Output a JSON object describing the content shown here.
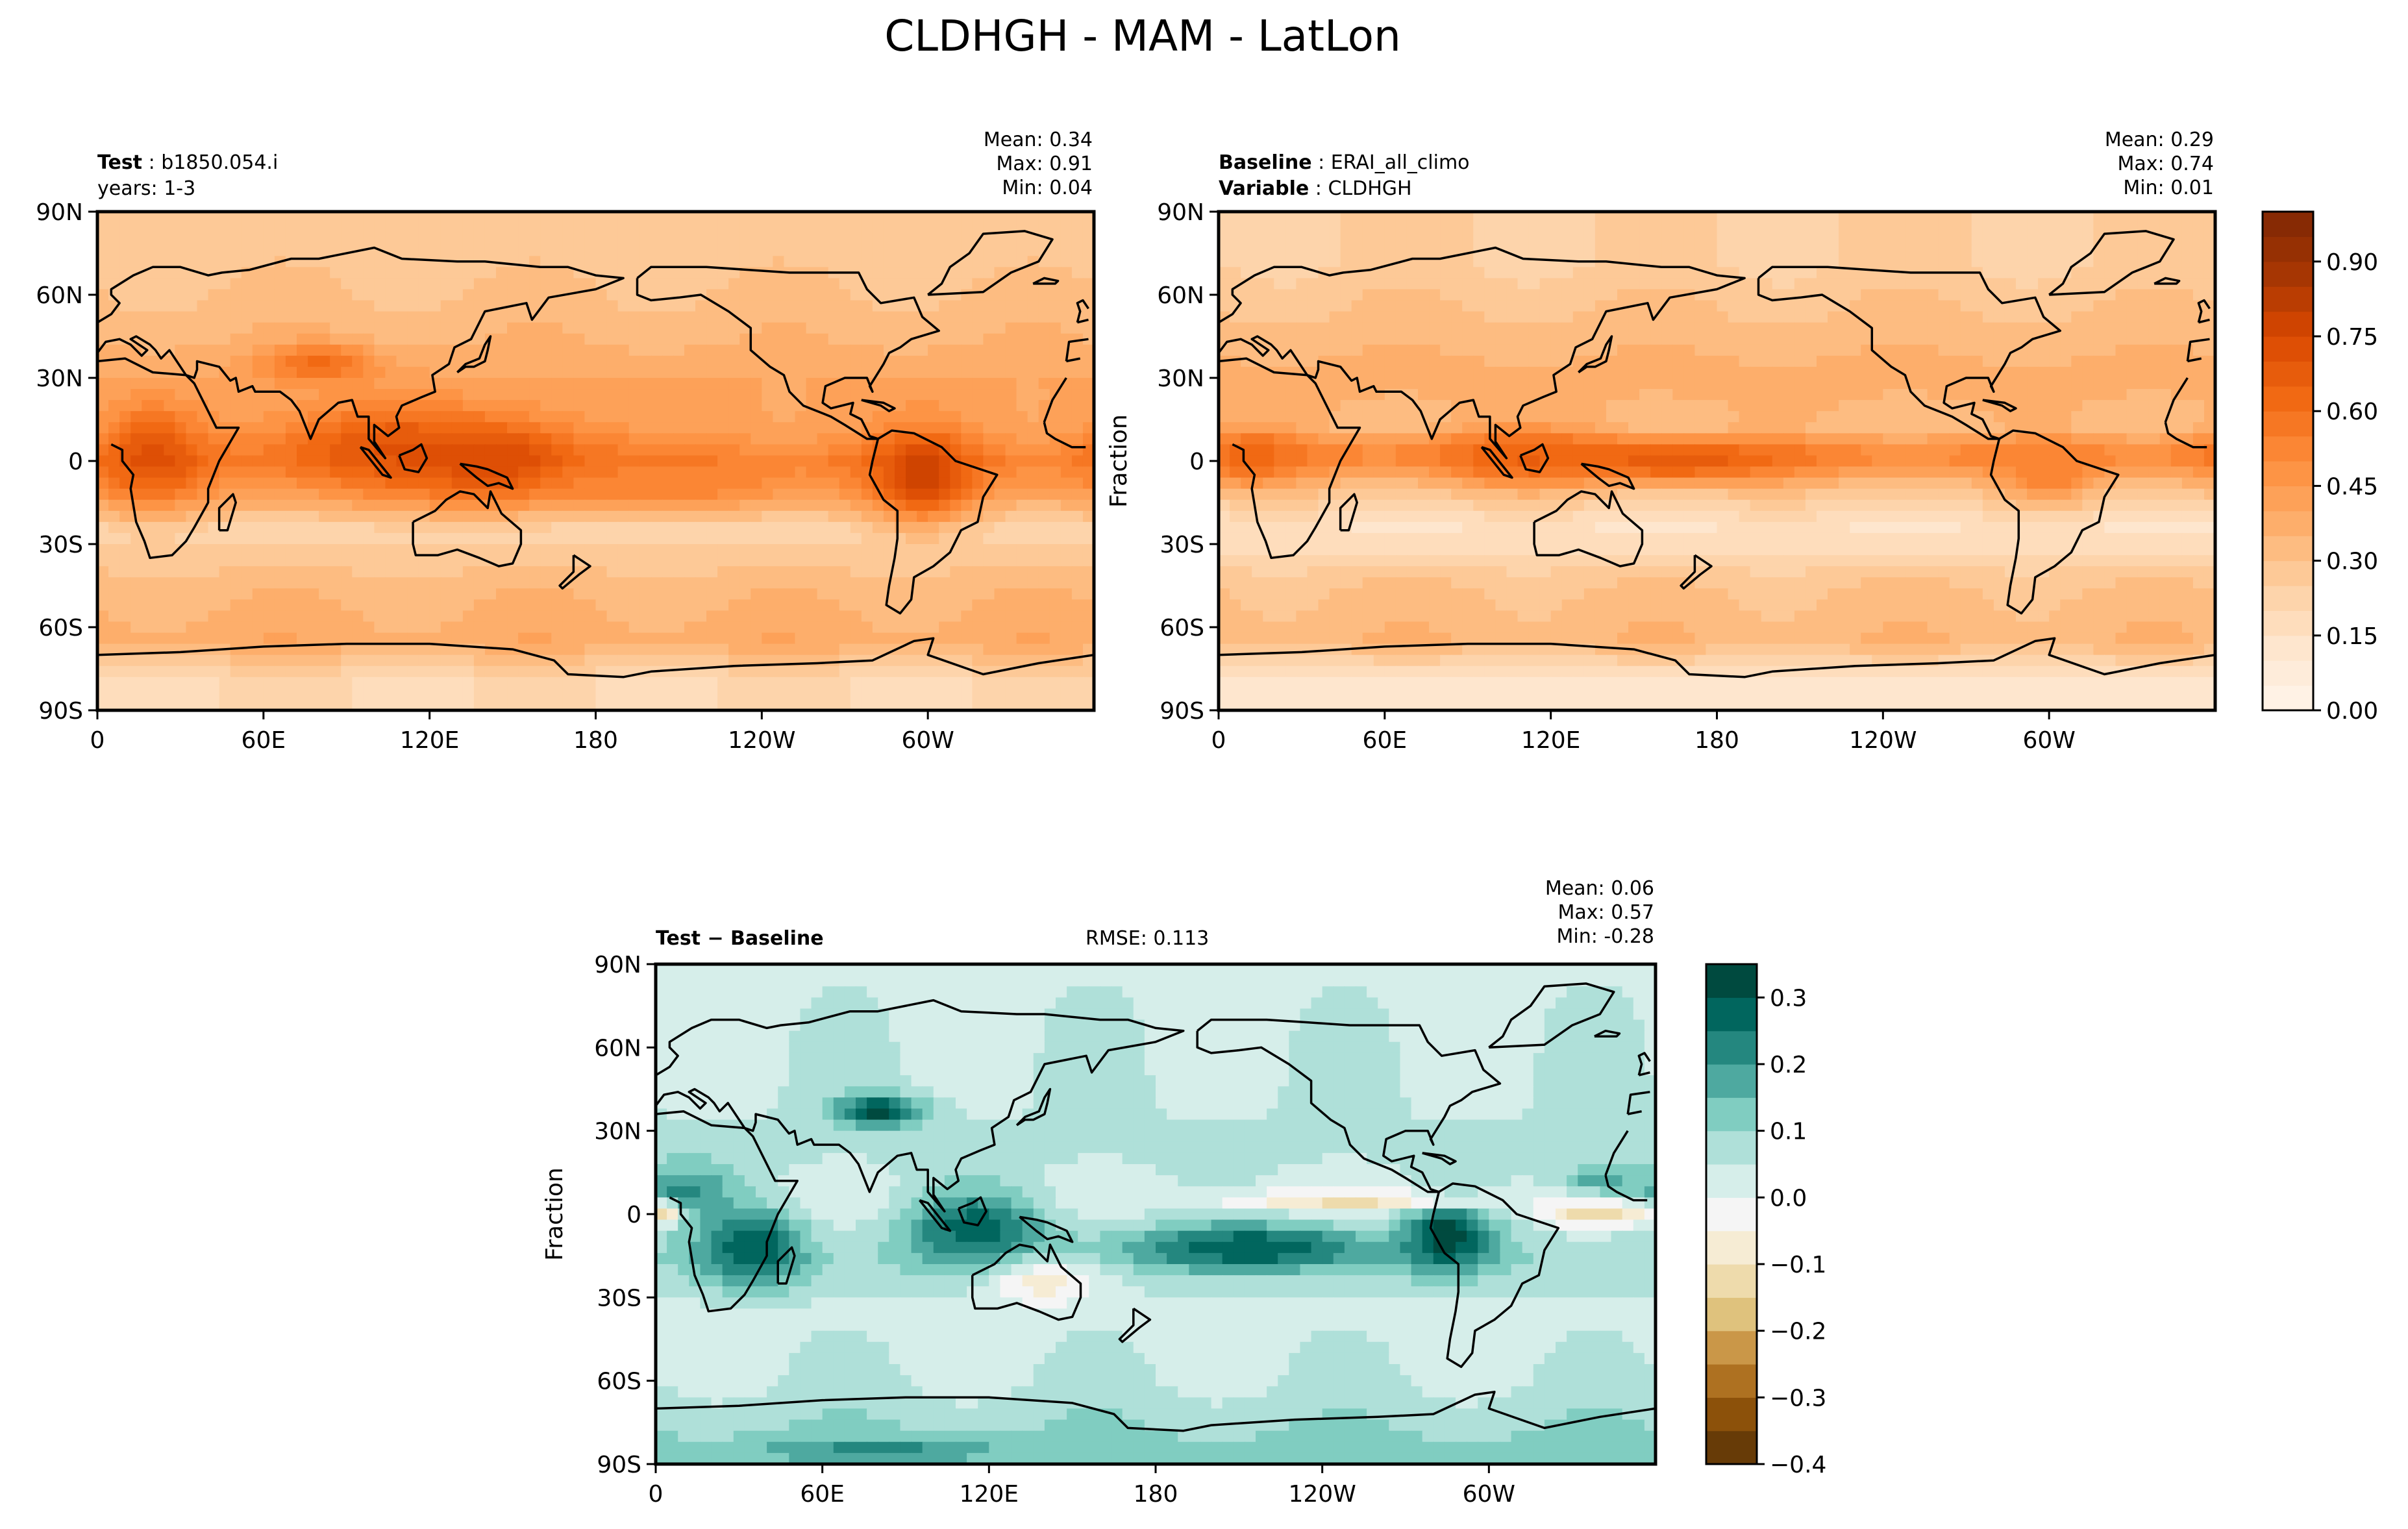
{
  "figure": {
    "title": "CLDHGH - MAM - LatLon"
  },
  "chart_data": [
    {
      "type": "heatmap",
      "panel": "test",
      "label_bold": "Test",
      "label_text": "b1850.054.i",
      "label_line2": "years: 1-3",
      "stats": {
        "mean": "Mean:  0.34",
        "max": "Max:  0.91",
        "min": "Min:  0.04"
      },
      "ylabel": "",
      "xticks": [
        "0",
        "60E",
        "120E",
        "180",
        "120W",
        "60W"
      ],
      "yticks": [
        "90N",
        "60N",
        "30N",
        "0",
        "30S",
        "60S",
        "90S"
      ],
      "xlim": [
        0,
        360
      ],
      "ylim": [
        -90,
        90
      ],
      "colormap": "Oranges",
      "zones": [
        {
          "lat": 72,
          "value": 0.28
        },
        {
          "lat": 45,
          "value": 0.34
        },
        {
          "lat": 30,
          "value": 0.4
        },
        {
          "lat": 12,
          "value": 0.42
        },
        {
          "lat": 0,
          "value": 0.55
        },
        {
          "lat": -10,
          "value": 0.45
        },
        {
          "lat": -25,
          "value": 0.22
        },
        {
          "lat": -45,
          "value": 0.33
        },
        {
          "lat": -65,
          "value": 0.38
        },
        {
          "lat": -80,
          "value": 0.2
        }
      ],
      "blobs": [
        {
          "lon": 20,
          "lat": 2,
          "rx": 18,
          "ry": 16,
          "value": 0.72
        },
        {
          "lon": 105,
          "lat": 5,
          "rx": 40,
          "ry": 14,
          "value": 0.7
        },
        {
          "lon": 145,
          "lat": 0,
          "rx": 30,
          "ry": 14,
          "value": 0.75
        },
        {
          "lon": 205,
          "lat": -8,
          "rx": 40,
          "ry": 8,
          "value": 0.55
        },
        {
          "lon": 298,
          "lat": -5,
          "rx": 18,
          "ry": 16,
          "value": 0.78
        },
        {
          "lon": 80,
          "lat": 35,
          "rx": 20,
          "ry": 7,
          "value": 0.62
        }
      ]
    },
    {
      "type": "heatmap",
      "panel": "baseline",
      "label_bold": "Baseline",
      "label_text": "ERAI_all_climo",
      "label_line2_bold": "Variable",
      "label_line2_text": "CLDHGH",
      "stats": {
        "mean": "Mean:  0.29",
        "max": "Max:  0.74",
        "min": "Min:  0.01"
      },
      "ylabel": "Fraction",
      "xticks": [
        "0",
        "60E",
        "120E",
        "180",
        "120W",
        "60W"
      ],
      "yticks": [
        "90N",
        "60N",
        "30N",
        "0",
        "30S",
        "60S",
        "90S"
      ],
      "xlim": [
        0,
        360
      ],
      "ylim": [
        -90,
        90
      ],
      "colormap": "Oranges",
      "zones": [
        {
          "lat": 72,
          "value": 0.25
        },
        {
          "lat": 45,
          "value": 0.33
        },
        {
          "lat": 30,
          "value": 0.37
        },
        {
          "lat": 12,
          "value": 0.33
        },
        {
          "lat": 2,
          "value": 0.55
        },
        {
          "lat": -10,
          "value": 0.3
        },
        {
          "lat": -25,
          "value": 0.14
        },
        {
          "lat": -45,
          "value": 0.3
        },
        {
          "lat": -65,
          "value": 0.34
        },
        {
          "lat": -80,
          "value": 0.12
        }
      ],
      "blobs": [
        {
          "lon": 12,
          "lat": 2,
          "rx": 18,
          "ry": 10,
          "value": 0.62
        },
        {
          "lon": 110,
          "lat": 2,
          "rx": 30,
          "ry": 10,
          "value": 0.65
        },
        {
          "lon": 165,
          "lat": 0,
          "rx": 40,
          "ry": 7,
          "value": 0.68
        },
        {
          "lon": 300,
          "lat": -5,
          "rx": 15,
          "ry": 10,
          "value": 0.55
        }
      ]
    },
    {
      "type": "heatmap",
      "panel": "diff",
      "label_bold": "Test − Baseline",
      "rmse": "RMSE: 0.113",
      "stats": {
        "mean": "Mean:  0.06",
        "max": "Max:  0.57",
        "min": "Min: -0.28"
      },
      "ylabel": "Fraction",
      "xticks": [
        "0",
        "60E",
        "120E",
        "180",
        "120W",
        "60W"
      ],
      "yticks": [
        "90N",
        "60N",
        "30N",
        "0",
        "30S",
        "60S",
        "90S"
      ],
      "xlim": [
        0,
        360
      ],
      "ylim": [
        -90,
        90
      ],
      "colormap": "BrBG",
      "zones": [
        {
          "lat": 75,
          "value": 0.04
        },
        {
          "lat": 40,
          "value": 0.05
        },
        {
          "lat": 20,
          "value": 0.06
        },
        {
          "lat": 5,
          "value": 0.02
        },
        {
          "lat": -15,
          "value": 0.1
        },
        {
          "lat": -35,
          "value": 0.03
        },
        {
          "lat": -60,
          "value": 0.05
        },
        {
          "lat": -85,
          "value": 0.12
        }
      ],
      "blobs": [
        {
          "lon": 10,
          "lat": 8,
          "rx": 18,
          "ry": 10,
          "value": 0.22
        },
        {
          "lon": 35,
          "lat": -12,
          "rx": 18,
          "ry": 14,
          "value": 0.3
        },
        {
          "lon": 80,
          "lat": 37,
          "rx": 16,
          "ry": 6,
          "value": 0.32
        },
        {
          "lon": 115,
          "lat": -5,
          "rx": 25,
          "ry": 14,
          "value": 0.28
        },
        {
          "lon": 215,
          "lat": -12,
          "rx": 45,
          "ry": 8,
          "value": 0.3
        },
        {
          "lon": 285,
          "lat": -8,
          "rx": 15,
          "ry": 12,
          "value": 0.34
        },
        {
          "lon": 250,
          "lat": 5,
          "rx": 45,
          "ry": 3,
          "value": -0.12
        },
        {
          "lon": 340,
          "lat": 0,
          "rx": 20,
          "ry": 4,
          "value": -0.14
        },
        {
          "lon": 3,
          "lat": 0,
          "rx": 5,
          "ry": 4,
          "value": -0.12
        },
        {
          "lon": 340,
          "lat": 12,
          "rx": 15,
          "ry": 5,
          "value": 0.18
        },
        {
          "lon": 140,
          "lat": -25,
          "rx": 20,
          "ry": 8,
          "value": -0.07
        },
        {
          "lon": 80,
          "lat": -85,
          "rx": 40,
          "ry": 4,
          "value": 0.22
        }
      ]
    }
  ],
  "colorbars": [
    {
      "name": "top",
      "levels": [
        0.0,
        0.05,
        0.1,
        0.15,
        0.2,
        0.25,
        0.3,
        0.35,
        0.4,
        0.45,
        0.5,
        0.55,
        0.6,
        0.65,
        0.7,
        0.75,
        0.8,
        0.85,
        0.9,
        0.95,
        1.0
      ],
      "ticks": [
        "0.00",
        "0.15",
        "0.30",
        "0.45",
        "0.60",
        "0.75",
        "0.90"
      ],
      "tick_values": [
        0.0,
        0.15,
        0.3,
        0.45,
        0.6,
        0.75,
        0.9
      ]
    },
    {
      "name": "bottom",
      "levels": [
        -0.4,
        -0.35,
        -0.3,
        -0.25,
        -0.2,
        -0.15,
        -0.1,
        -0.05,
        0.0,
        0.05,
        0.1,
        0.15,
        0.2,
        0.25,
        0.3,
        0.35
      ],
      "ticks": [
        "−0.4",
        "−0.3",
        "−0.2",
        "−0.1",
        "0.0",
        "0.1",
        "0.2",
        "0.3"
      ],
      "tick_values": [
        -0.4,
        -0.3,
        -0.2,
        -0.1,
        0.0,
        0.1,
        0.2,
        0.3
      ]
    }
  ],
  "colors": {
    "oranges": [
      "#fff5eb",
      "#fee6ce",
      "#fdd0a2",
      "#fdae6b",
      "#fd8d3c",
      "#f16913",
      "#d94801",
      "#a63603",
      "#7f2704"
    ],
    "brbg": [
      "#543005",
      "#8c510a",
      "#bf812d",
      "#dfc27d",
      "#f6e8c3",
      "#f5f5f5",
      "#c7eae5",
      "#80cdc1",
      "#35978f",
      "#01665e",
      "#003c30"
    ],
    "coastline": "#000000"
  }
}
